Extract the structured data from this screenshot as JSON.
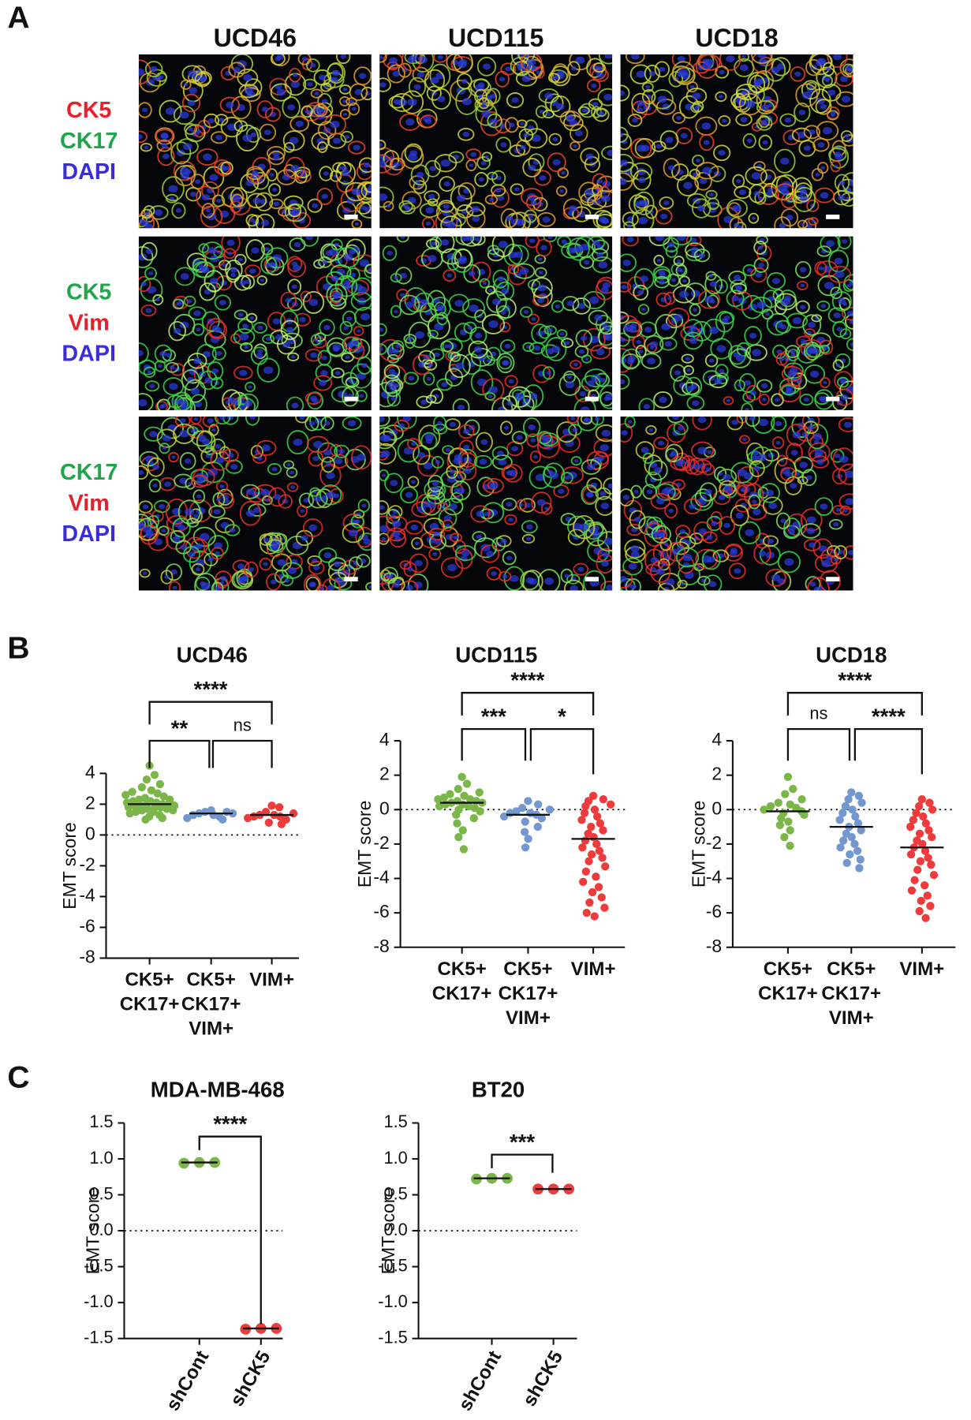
{
  "panel_a": {
    "label": "A",
    "columns": [
      "UCD46",
      "UCD115",
      "UCD18"
    ],
    "rows": [
      {
        "stains": [
          {
            "text": "CK5",
            "color": "#e8202a"
          },
          {
            "text": "CK17",
            "color": "#1fa64a"
          },
          {
            "text": "DAPI",
            "color": "#3a2fd6"
          }
        ]
      },
      {
        "stains": [
          {
            "text": "CK5",
            "color": "#1fa64a"
          },
          {
            "text": "Vim",
            "color": "#e8202a"
          },
          {
            "text": "DAPI",
            "color": "#3a2fd6"
          }
        ]
      },
      {
        "stains": [
          {
            "text": "CK17",
            "color": "#1fa64a"
          },
          {
            "text": "Vim",
            "color": "#e8202a"
          },
          {
            "text": "DAPI",
            "color": "#3a2fd6"
          }
        ]
      }
    ]
  },
  "panel_b": {
    "label": "B"
  },
  "panel_c": {
    "label": "C"
  },
  "chart_data": [
    {
      "type": "scatter",
      "title": "UCD46",
      "ylabel": "EMT score",
      "categories": [
        [
          "CK5+",
          "CK17+"
        ],
        [
          "CK5+",
          "CK17+",
          "VIM+"
        ],
        [
          "VIM+"
        ]
      ],
      "colors": [
        "#7ab648",
        "#7397d1",
        "#ee3b3b"
      ],
      "values": [
        [
          4.5,
          3.9,
          3.6,
          3.3,
          3.1,
          2.9,
          2.8,
          2.7,
          2.6,
          2.5,
          2.4,
          2.3,
          2.3,
          2.2,
          2.2,
          2.1,
          2.1,
          2.0,
          2.0,
          2.0,
          1.9,
          1.9,
          1.9,
          1.8,
          1.8,
          1.8,
          1.7,
          1.7,
          1.6,
          1.6,
          1.5,
          1.5,
          1.4,
          1.3,
          1.2,
          1.1,
          1.0
        ],
        [
          1.6,
          1.5,
          1.5,
          1.4,
          1.4,
          1.3,
          1.3,
          1.2,
          1.1,
          1.0
        ],
        [
          1.9,
          1.8,
          1.5,
          1.4,
          1.3,
          1.3,
          1.2,
          1.2,
          1.1,
          1.0,
          0.8,
          0.7
        ]
      ],
      "means": [
        2.0,
        1.4,
        1.3
      ],
      "ylim": [
        -8,
        4
      ],
      "yticks": [
        -8,
        -6,
        -4,
        -2,
        0,
        2,
        4
      ],
      "reference_line": 0,
      "comparisons": [
        {
          "label": "**"
        },
        {
          "label": "ns"
        },
        {
          "label": "****"
        }
      ]
    },
    {
      "type": "scatter",
      "title": "UCD115",
      "ylabel": "EMT score",
      "categories": [
        [
          "CK5+",
          "CK17+"
        ],
        [
          "CK5+",
          "CK17+",
          "VIM+"
        ],
        [
          "VIM+"
        ]
      ],
      "colors": [
        "#7ab648",
        "#7397d1",
        "#ee3b3b"
      ],
      "values": [
        [
          1.9,
          1.5,
          1.2,
          1.0,
          0.9,
          0.8,
          0.7,
          0.6,
          0.6,
          0.5,
          0.5,
          0.4,
          0.4,
          0.3,
          0.3,
          0.2,
          0.2,
          0.1,
          0.0,
          -0.1,
          -0.3,
          -0.5,
          -0.8,
          -1.2,
          -1.6,
          -2.3
        ],
        [
          0.5,
          0.3,
          0.1,
          0.0,
          -0.1,
          -0.2,
          -0.2,
          -0.3,
          -0.4,
          -0.5,
          -0.7,
          -1.0,
          -1.3,
          -1.7,
          -2.2
        ],
        [
          0.8,
          0.6,
          0.5,
          0.3,
          0.2,
          0.0,
          -0.2,
          -0.4,
          -0.6,
          -0.8,
          -1.0,
          -1.2,
          -1.4,
          -1.6,
          -1.8,
          -2.0,
          -2.2,
          -2.4,
          -2.6,
          -2.8,
          -3.0,
          -3.3,
          -3.6,
          -3.9,
          -4.2,
          -4.5,
          -4.8,
          -5.1,
          -5.4,
          -5.7,
          -6.0,
          -6.2
        ]
      ],
      "means": [
        0.4,
        -0.3,
        -1.7
      ],
      "ylim": [
        -8,
        4
      ],
      "yticks": [
        -8,
        -6,
        -4,
        -2,
        0,
        2,
        4
      ],
      "reference_line": 0,
      "comparisons": [
        {
          "label": "***"
        },
        {
          "label": "*"
        },
        {
          "label": "****"
        }
      ]
    },
    {
      "type": "scatter",
      "title": "UCD18",
      "ylabel": "EMT score",
      "categories": [
        [
          "CK5+",
          "CK17+"
        ],
        [
          "CK5+",
          "CK17+",
          "VIM+"
        ],
        [
          "VIM+"
        ]
      ],
      "colors": [
        "#7ab648",
        "#7397d1",
        "#ee3b3b"
      ],
      "values": [
        [
          1.9,
          1.2,
          0.9,
          0.6,
          0.4,
          0.3,
          0.2,
          0.1,
          0.0,
          -0.1,
          -0.2,
          -0.3,
          -0.5,
          -0.7,
          -0.9,
          -1.2,
          -1.6,
          -2.1
        ],
        [
          1.0,
          0.8,
          0.6,
          0.4,
          0.2,
          0.0,
          -0.2,
          -0.4,
          -0.6,
          -0.8,
          -1.0,
          -1.2,
          -1.4,
          -1.6,
          -1.8,
          -2.0,
          -2.2,
          -2.4,
          -2.6,
          -2.9,
          -3.1,
          -3.4
        ],
        [
          0.6,
          0.4,
          0.2,
          0.0,
          -0.2,
          -0.4,
          -0.6,
          -0.8,
          -1.0,
          -1.2,
          -1.4,
          -1.6,
          -1.8,
          -2.0,
          -2.2,
          -2.4,
          -2.6,
          -2.8,
          -3.0,
          -3.2,
          -3.5,
          -3.8,
          -4.1,
          -4.4,
          -4.7,
          -5.0,
          -5.3,
          -5.6,
          -5.9,
          -6.3
        ]
      ],
      "means": [
        -0.1,
        -1.0,
        -2.2
      ],
      "ylim": [
        -8,
        4
      ],
      "yticks": [
        -8,
        -6,
        -4,
        -2,
        0,
        2,
        4
      ],
      "reference_line": 0,
      "comparisons": [
        {
          "label": "ns"
        },
        {
          "label": "****"
        },
        {
          "label": "****"
        }
      ]
    },
    {
      "type": "scatter",
      "title": "MDA-MB-468",
      "ylabel": "EMT score",
      "categories": [
        [
          "shCont"
        ],
        [
          "shCK5"
        ]
      ],
      "colors": [
        "#7ab648",
        "#ee3b3b"
      ],
      "values": [
        [
          0.94,
          0.95,
          0.95
        ],
        [
          -1.37,
          -1.36,
          -1.36
        ]
      ],
      "means": [
        0.95,
        -1.36
      ],
      "ylim": [
        -1.5,
        1.5
      ],
      "yticks": [
        -1.5,
        {
          "value": -1.0,
          "label": "-1.0"
        },
        -0.5,
        {
          "value": 0,
          "label": "0.0"
        },
        0.5,
        {
          "value": 1.0,
          "label": "1.0"
        },
        1.5
      ],
      "reference_line": 0,
      "comparisons": [
        {
          "label": "****"
        }
      ]
    },
    {
      "type": "scatter",
      "title": "BT20",
      "ylabel": "EMT score",
      "categories": [
        [
          "shCont"
        ],
        [
          "shCK5"
        ]
      ],
      "colors": [
        "#7ab648",
        "#ee3b3b"
      ],
      "values": [
        [
          0.72,
          0.73,
          0.73
        ],
        [
          0.58,
          0.58,
          0.58
        ]
      ],
      "means": [
        0.73,
        0.58
      ],
      "ylim": [
        -1.5,
        1.5
      ],
      "yticks": [
        -1.5,
        {
          "value": -1.0,
          "label": "-1.0"
        },
        -0.5,
        {
          "value": 0,
          "label": "0.0"
        },
        0.5,
        {
          "value": 1.0,
          "label": "1.0"
        },
        1.5
      ],
      "reference_line": 0,
      "comparisons": [
        {
          "label": "***"
        }
      ]
    }
  ]
}
